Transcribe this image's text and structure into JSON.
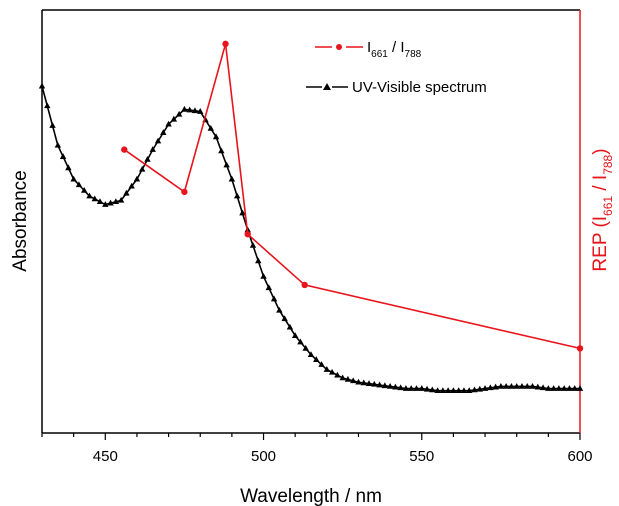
{
  "chart_data": {
    "type": "line",
    "xlabel": "Wavelength / nm",
    "ylabel_left": "Absorbance",
    "ylabel_right": {
      "main": "REP (I",
      "sub1": "661",
      "mid": " / I",
      "sub2": "788",
      "end": ")"
    },
    "xlim": [
      430,
      600
    ],
    "xticks": [
      450,
      500,
      550,
      600
    ],
    "xtick_labels": [
      "450",
      "500",
      "550",
      "600"
    ],
    "ylim_left": [
      0,
      1
    ],
    "ylim_right": [
      0,
      1
    ],
    "legend_position": "top-right",
    "series": [
      {
        "legend": {
          "main1": "I",
          "sub1": "661",
          "mid": " / I",
          "sub2": "788"
        },
        "axis": "right",
        "color": "#e8141c",
        "marker": "circle",
        "x": [
          456,
          475,
          488,
          495,
          513,
          600
        ],
        "y": [
          0.67,
          0.57,
          0.92,
          0.47,
          0.35,
          0.2
        ]
      },
      {
        "name": "UV-Visible spectrum",
        "axis": "left",
        "color": "#000000",
        "marker": "triangle",
        "x": [
          430,
          435,
          440,
          445,
          450,
          455,
          460,
          465,
          470,
          475,
          480,
          485,
          490,
          495,
          500,
          505,
          510,
          515,
          520,
          525,
          530,
          535,
          540,
          545,
          550,
          555,
          560,
          565,
          570,
          575,
          580,
          585,
          590,
          595,
          600
        ],
        "y": [
          0.82,
          0.68,
          0.6,
          0.56,
          0.54,
          0.55,
          0.6,
          0.67,
          0.73,
          0.765,
          0.76,
          0.7,
          0.6,
          0.48,
          0.37,
          0.29,
          0.23,
          0.185,
          0.15,
          0.13,
          0.12,
          0.115,
          0.11,
          0.105,
          0.105,
          0.1,
          0.1,
          0.1,
          0.105,
          0.11,
          0.11,
          0.11,
          0.105,
          0.105,
          0.105
        ]
      }
    ]
  }
}
